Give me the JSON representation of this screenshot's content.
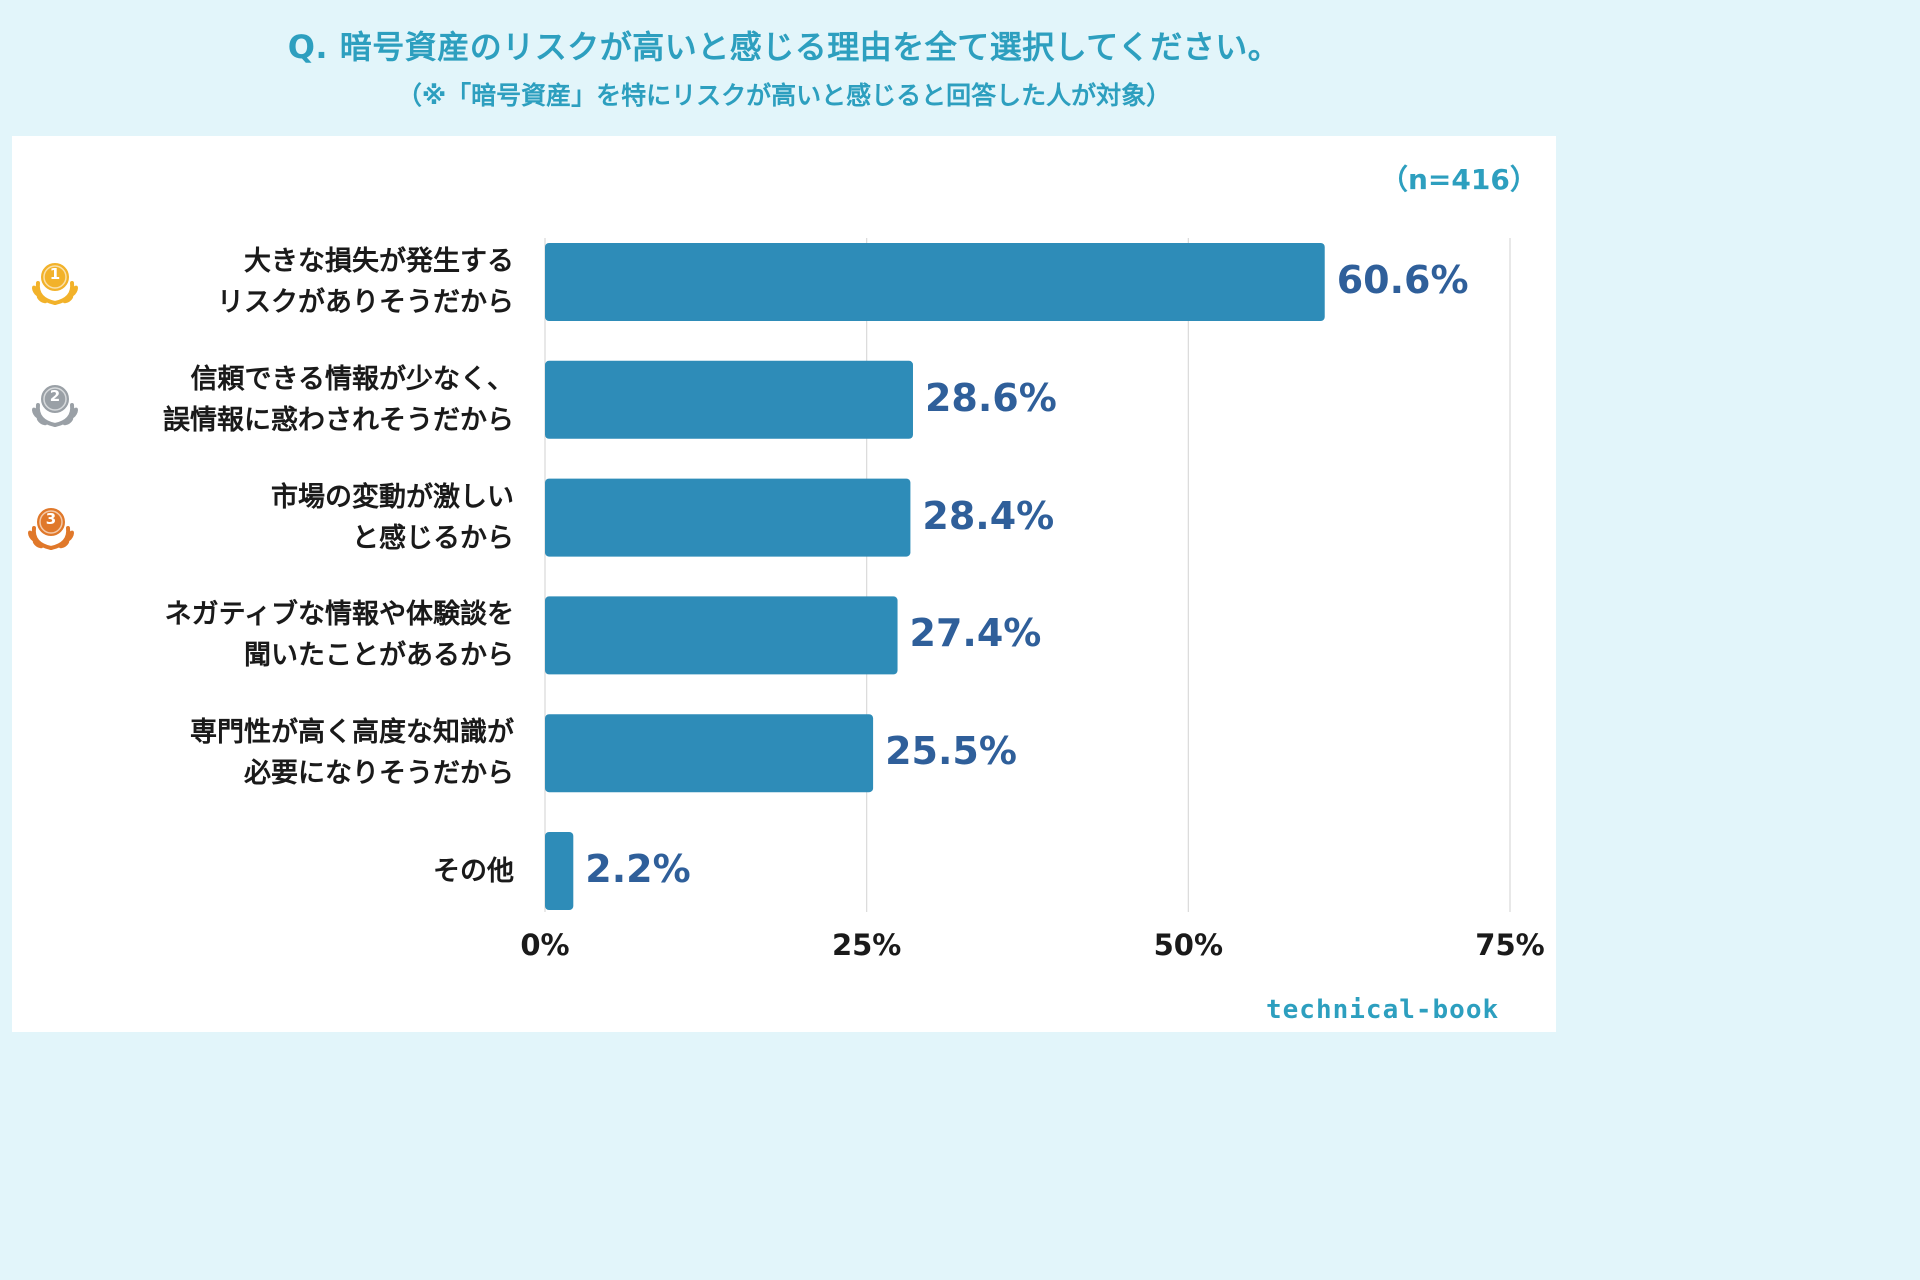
{
  "title": "Q. 暗号資産のリスクが高いと感じる理由を全て選択してください。",
  "subtitle": "（※「暗号資産」を特にリスクが高いと感じると回答した人が対象）",
  "sample_size": "（n=416）",
  "logo_text": "technical-book",
  "colors": {
    "bar": "#2e8cb8",
    "accent": "#2d9fbf",
    "value_text": "#2f5f9a",
    "grid": "#d9d9d9"
  },
  "medals": [
    {
      "rank": "1",
      "icon": "gold-medal-icon",
      "color": "#f2b22a"
    },
    {
      "rank": "2",
      "icon": "silver-medal-icon",
      "color": "#9aa0a6"
    },
    {
      "rank": "3",
      "icon": "bronze-medal-icon",
      "color": "#e0782a"
    }
  ],
  "chart_data": {
    "type": "bar",
    "orientation": "horizontal",
    "categories": [
      [
        "大きな損失が発生する",
        "リスクがありそうだから"
      ],
      [
        "信頼できる情報が少なく、",
        "誤情報に惑わされそうだから"
      ],
      [
        "市場の変動が激しい",
        "と感じるから"
      ],
      [
        "ネガティブな情報や体験談を",
        "聞いたことがあるから"
      ],
      [
        "専門性が高く高度な知識が",
        "必要になりそうだから"
      ],
      [
        "その他"
      ]
    ],
    "values": [
      60.6,
      28.6,
      28.4,
      27.4,
      25.5,
      2.2
    ],
    "value_labels": [
      "60.6%",
      "28.6%",
      "28.4%",
      "27.4%",
      "25.5%",
      "2.2%"
    ],
    "xlim": [
      0,
      75
    ],
    "ticks": [
      0,
      25,
      50,
      75
    ],
    "tick_labels": [
      "0%",
      "25%",
      "50%",
      "75%"
    ],
    "grid": true
  }
}
